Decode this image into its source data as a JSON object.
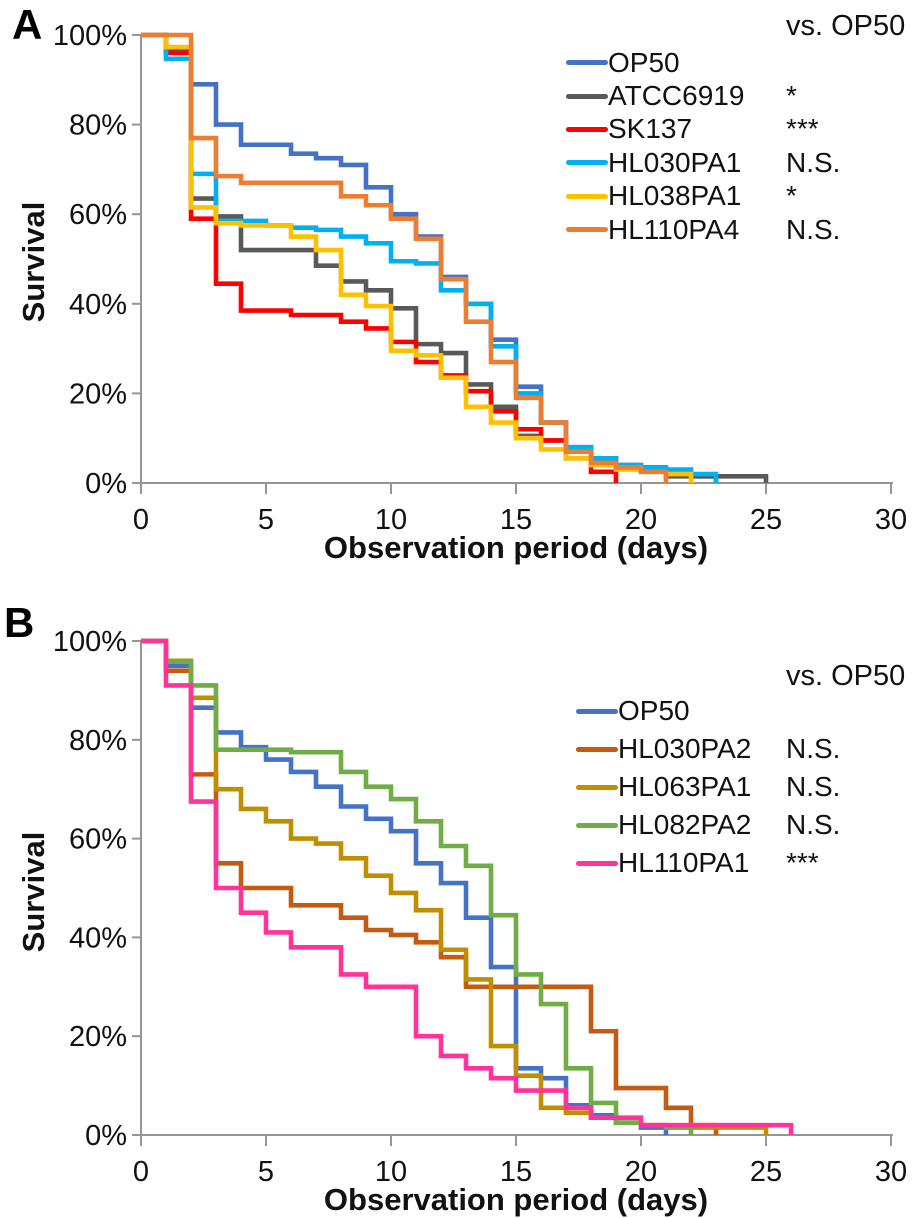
{
  "chart_data": [
    {
      "letter": "A",
      "type": "line",
      "subtype": "kaplan-meier-step-survival",
      "xlabel": "Observation period (days)",
      "ylabel": "Survival",
      "xlim": [
        0,
        30
      ],
      "ylim": [
        0,
        100
      ],
      "x_ticks": [
        0,
        5,
        10,
        15,
        20,
        25,
        30
      ],
      "y_ticks": [
        "0%",
        "20%",
        "40%",
        "60%",
        "80%",
        "100%"
      ],
      "grid": "off",
      "legend_position": "inside-top-right",
      "legend_title": "vs. OP50",
      "axis_color": "#969696",
      "series": [
        {
          "name": "OP50",
          "color": "#4472C4",
          "significance": "",
          "survival_pct_by_day": [
            100,
            96.5,
            89,
            80,
            75.5,
            75.5,
            73.5,
            72.5,
            71,
            66,
            60,
            55,
            46,
            40,
            32,
            21.5,
            13.5,
            8,
            5.5,
            4,
            3,
            2,
            1.5,
            0
          ]
        },
        {
          "name": "ATCC6919",
          "color": "#595959",
          "significance": "*",
          "survival_pct_by_day": [
            100,
            97,
            63.5,
            59.5,
            52,
            52,
            52,
            48.5,
            45,
            43,
            39,
            31,
            29,
            22,
            17,
            10.5,
            9.5,
            5.5,
            4,
            3.5,
            3,
            1.5,
            1.5,
            1.5,
            1.5,
            0
          ]
        },
        {
          "name": "SK137",
          "color": "#FF0000",
          "significance": "***",
          "survival_pct_by_day": [
            100,
            96,
            59,
            44.5,
            38.5,
            38.5,
            37.5,
            37.5,
            36,
            34.5,
            31.5,
            27,
            24,
            20.5,
            16,
            12,
            9.5,
            7.5,
            2.5,
            0
          ]
        },
        {
          "name": "HL030PA1",
          "color": "#00B0F0",
          "significance": "N.S.",
          "survival_pct_by_day": [
            100,
            94.7,
            69,
            58.5,
            58.5,
            57.5,
            57,
            56.5,
            55,
            53.5,
            49.5,
            49,
            43,
            40,
            30.5,
            20,
            13.5,
            8,
            5.5,
            4,
            3.5,
            3,
            2,
            0
          ]
        },
        {
          "name": "HL038PA1",
          "color": "#FFC000",
          "significance": "*",
          "survival_pct_by_day": [
            100,
            97.3,
            61.5,
            58,
            57.5,
            57.5,
            55,
            52,
            42,
            39.5,
            29.5,
            28.5,
            23.5,
            17,
            13.5,
            10,
            7.5,
            5.5,
            4,
            3,
            2.5,
            2,
            0
          ]
        },
        {
          "name": "HL110PA4",
          "color": "#ED7D31",
          "significance": "N.S.",
          "survival_pct_by_day": [
            100,
            100,
            77,
            68.5,
            67,
            67,
            67,
            67,
            64,
            62,
            59,
            54.5,
            45.5,
            36,
            27,
            19,
            13.5,
            7,
            4.5,
            3.5,
            2.5,
            0
          ]
        }
      ]
    },
    {
      "letter": "B",
      "type": "line",
      "subtype": "kaplan-meier-step-survival",
      "xlabel": "Observation period (days)",
      "ylabel": "Survival",
      "xlim": [
        0,
        30
      ],
      "ylim": [
        0,
        100
      ],
      "x_ticks": [
        0,
        5,
        10,
        15,
        20,
        25,
        30
      ],
      "y_ticks": [
        "0%",
        "20%",
        "40%",
        "60%",
        "80%",
        "100%"
      ],
      "grid": "off",
      "legend_position": "inside-top-right",
      "legend_title": "vs. OP50",
      "axis_color": "#969696",
      "series": [
        {
          "name": "OP50",
          "color": "#4472C4",
          "significance": "",
          "survival_pct_by_day": [
            100,
            95,
            86.5,
            81.5,
            78.5,
            76,
            73.5,
            70.5,
            66.5,
            64,
            61.5,
            55,
            51,
            44,
            34,
            13.5,
            11.5,
            6,
            4,
            2.5,
            1.5,
            0
          ]
        },
        {
          "name": "HL030PA2",
          "color": "#C55A11",
          "significance": "N.S.",
          "survival_pct_by_day": [
            100,
            94,
            73,
            55,
            50,
            50,
            46.5,
            46.5,
            44,
            41.5,
            40.5,
            39,
            36,
            30,
            30,
            30,
            30,
            30,
            21,
            9.5,
            9.5,
            5.5,
            2,
            0
          ]
        },
        {
          "name": "HL063PA1",
          "color": "#BF8F00",
          "significance": "N.S.",
          "survival_pct_by_day": [
            100,
            96,
            88.5,
            70,
            66,
            63.5,
            60,
            59,
            56,
            52.5,
            49,
            45.5,
            37.5,
            31.5,
            18,
            12,
            5.5,
            4.5,
            3.5,
            2.5,
            2,
            1.5,
            1.5,
            1.5,
            1.5,
            0
          ]
        },
        {
          "name": "HL082PA2",
          "color": "#70AD47",
          "significance": "N.S.",
          "survival_pct_by_day": [
            100,
            95.8,
            91,
            78,
            78,
            78,
            77.5,
            77.5,
            73.5,
            70.5,
            68,
            63.5,
            58.5,
            54.5,
            44.5,
            32.5,
            26.5,
            13.5,
            6.5,
            2.5,
            2,
            1.5,
            0
          ]
        },
        {
          "name": "HL110PA1",
          "color": "#FF3399",
          "significance": "***",
          "survival_pct_by_day": [
            100,
            91,
            67.5,
            50,
            45,
            41,
            38,
            38,
            32.5,
            30,
            30,
            20,
            16,
            13.5,
            11.5,
            9,
            9,
            5.5,
            3.5,
            3.5,
            2,
            2,
            2,
            2,
            2,
            2,
            0
          ]
        }
      ]
    }
  ]
}
